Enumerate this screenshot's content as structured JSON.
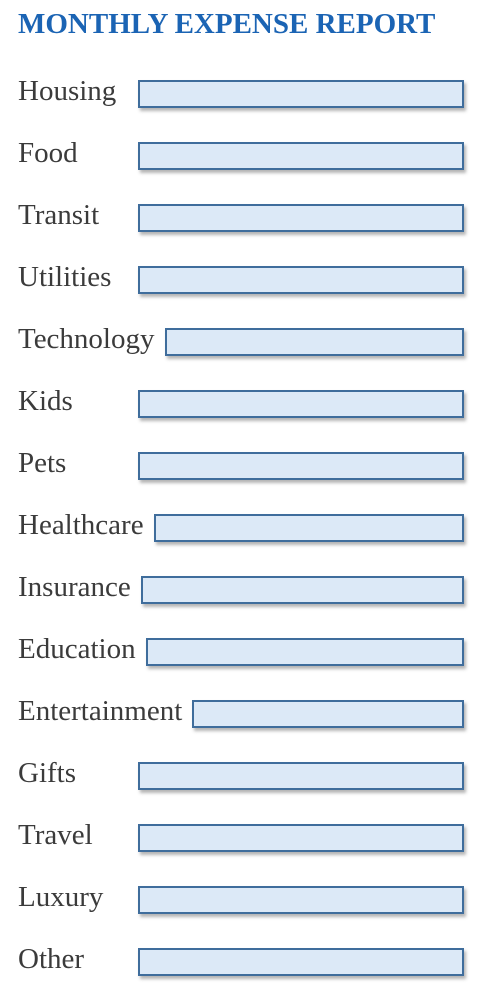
{
  "title": "MONTHLY EXPENSE REPORT",
  "colors": {
    "title": "#1b64b4",
    "field_fill": "#dce9f7",
    "field_border": "#3f6d9c",
    "label_text": "#3b3b3b"
  },
  "categories": [
    {
      "label": "Housing",
      "value": ""
    },
    {
      "label": "Food",
      "value": ""
    },
    {
      "label": "Transit",
      "value": ""
    },
    {
      "label": "Utilities",
      "value": ""
    },
    {
      "label": "Technology",
      "value": ""
    },
    {
      "label": "Kids",
      "value": ""
    },
    {
      "label": "Pets",
      "value": ""
    },
    {
      "label": "Healthcare",
      "value": ""
    },
    {
      "label": "Insurance",
      "value": ""
    },
    {
      "label": "Education",
      "value": ""
    },
    {
      "label": "Entertainment",
      "value": ""
    },
    {
      "label": "Gifts",
      "value": ""
    },
    {
      "label": "Travel",
      "value": ""
    },
    {
      "label": "Luxury",
      "value": ""
    },
    {
      "label": "Other",
      "value": ""
    }
  ]
}
